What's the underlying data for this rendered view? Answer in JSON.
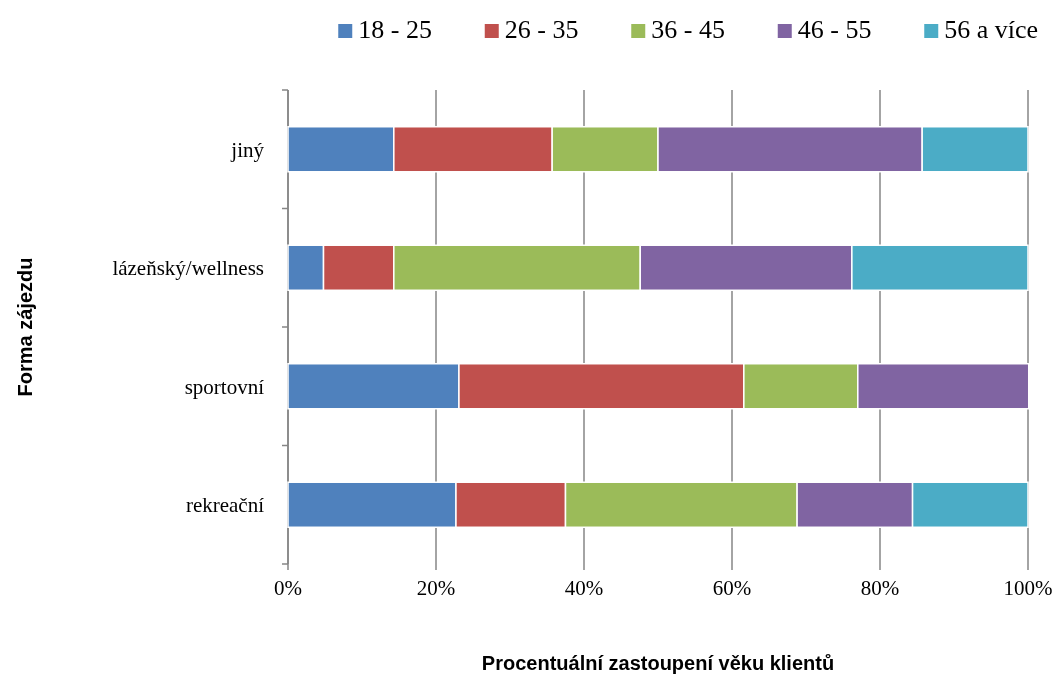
{
  "chart_data": {
    "type": "bar",
    "orientation": "horizontal",
    "stacked": true,
    "xlabel": "Procentuální zastoupení věku klientů",
    "ylabel": "Forma zájezdu",
    "categories": [
      "jiný",
      "lázeňský/wellness",
      "sportovní",
      "rekreační"
    ],
    "series": [
      {
        "name": "18 - 25",
        "color": "#4f81bd",
        "values": [
          14.3,
          4.8,
          23.1,
          22.7
        ]
      },
      {
        "name": "26 - 35",
        "color": "#c0504d",
        "values": [
          21.4,
          9.5,
          38.5,
          14.8
        ]
      },
      {
        "name": "36 - 45",
        "color": "#9bbb59",
        "values": [
          14.3,
          33.3,
          15.4,
          31.3
        ]
      },
      {
        "name": "46 - 55",
        "color": "#8064a2",
        "values": [
          35.7,
          28.6,
          23.1,
          15.6
        ]
      },
      {
        "name": "56 a více",
        "color": "#4bacc6",
        "values": [
          14.3,
          23.8,
          0,
          15.6
        ]
      }
    ],
    "xlim": [
      0,
      100
    ],
    "xticks": [
      {
        "value": 0,
        "label": "0%"
      },
      {
        "value": 20,
        "label": "20%"
      },
      {
        "value": 40,
        "label": "40%"
      },
      {
        "value": 60,
        "label": "60%"
      },
      {
        "value": 80,
        "label": "80%"
      },
      {
        "value": 100,
        "label": "100%"
      }
    ],
    "grid": "x",
    "legend": "top"
  }
}
